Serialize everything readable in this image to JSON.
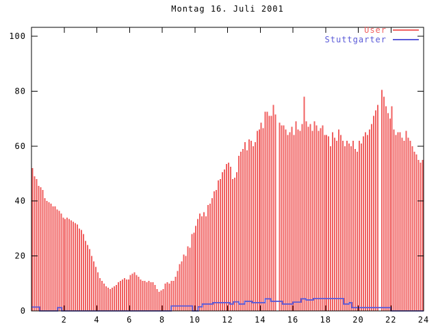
{
  "title": "Montag 16. Juli 2001",
  "colors": {
    "background": "#ffffff",
    "border": "#000000",
    "user": "#f06060",
    "stuttgarter": "#5a5ad8"
  },
  "legend": [
    {
      "label": "User",
      "color": "#f06060"
    },
    {
      "label": "Stuttgarter",
      "color": "#5a5ad8"
    }
  ],
  "chart_data": {
    "type": "bar",
    "title": "Montag 16. Juli 2001",
    "xlabel": "",
    "ylabel": "",
    "xlim": [
      0,
      24
    ],
    "ylim": [
      0,
      103
    ],
    "xticks": [
      2,
      4,
      6,
      8,
      10,
      12,
      14,
      16,
      18,
      20,
      22,
      24
    ],
    "yticks": [
      0,
      20,
      40,
      60,
      80,
      100
    ],
    "grid": false,
    "legend_position": "top-right-inside",
    "series": [
      {
        "name": "User",
        "style": "impulses",
        "color": "#f06060",
        "x_start": 0.0625,
        "x_step": 0.125,
        "values": [
          52,
          49,
          48,
          45.5,
          45,
          44,
          41,
          40,
          39.5,
          39,
          38,
          38,
          37,
          36.5,
          35.5,
          34,
          33.5,
          34,
          33.5,
          33,
          32.5,
          32,
          31.5,
          30,
          29.5,
          28,
          25.5,
          24,
          22.5,
          20,
          18,
          16,
          14,
          12,
          11,
          10,
          9,
          8.5,
          8,
          8.5,
          9,
          9.5,
          10.5,
          11,
          11.5,
          12,
          11.5,
          11.5,
          13,
          13.5,
          14,
          13,
          12.5,
          11.5,
          11,
          11,
          10.5,
          11,
          10.5,
          10.5,
          9.5,
          8,
          7,
          7.5,
          8,
          10,
          10.5,
          10,
          11,
          11,
          12.5,
          14.5,
          17,
          18,
          20.5,
          20,
          23.5,
          23,
          28,
          28.5,
          31,
          33.5,
          35.5,
          34.5,
          36,
          34.5,
          38.5,
          39,
          41,
          43.5,
          44,
          47.5,
          48,
          50.5,
          51.5,
          53.5,
          54,
          52.5,
          48,
          48.5,
          50.5,
          56.5,
          58,
          59,
          61.5,
          58.5,
          62.5,
          62,
          60,
          61.5,
          65.5,
          66,
          68.5,
          66.5,
          72.5,
          72.5,
          71,
          71,
          75,
          71.5,
          null,
          68.5,
          67.5,
          67.5,
          66,
          64,
          65,
          67,
          64,
          69,
          66,
          65.5,
          68,
          78,
          69,
          67,
          68,
          65.5,
          69,
          67.5,
          65.5,
          66.5,
          67.5,
          64,
          64,
          63.5,
          60,
          65,
          63,
          62,
          66,
          64,
          62,
          60,
          62,
          61,
          60,
          62,
          59,
          58,
          62,
          61,
          63.5,
          65,
          64,
          66,
          68,
          71,
          73,
          75,
          null,
          80.5,
          78,
          74.5,
          72,
          70,
          74.5,
          66,
          64,
          65,
          65,
          63,
          62,
          65.5,
          63,
          62,
          60,
          58,
          57,
          55,
          54,
          55
        ]
      },
      {
        "name": "Stuttgarter",
        "style": "steps",
        "color": "#5a5ad8",
        "points": [
          [
            0,
            1.4
          ],
          [
            0.5,
            0
          ],
          [
            1.6,
            1.2
          ],
          [
            1.85,
            0
          ],
          [
            8.55,
            1.8
          ],
          [
            9.85,
            0
          ],
          [
            10.2,
            1.5
          ],
          [
            10.45,
            2.5
          ],
          [
            11.1,
            3
          ],
          [
            12.15,
            2.5
          ],
          [
            12.35,
            3.3
          ],
          [
            12.7,
            2.5
          ],
          [
            13.05,
            3.5
          ],
          [
            13.5,
            3
          ],
          [
            14.3,
            4.4
          ],
          [
            14.65,
            3.5
          ],
          [
            15.35,
            2.5
          ],
          [
            16.0,
            3.2
          ],
          [
            16.5,
            4.4
          ],
          [
            16.8,
            4
          ],
          [
            17.25,
            4.5
          ],
          [
            19.1,
            2.5
          ],
          [
            19.45,
            3
          ],
          [
            19.6,
            1.2
          ],
          [
            22.0,
            0
          ],
          [
            24,
            0
          ]
        ]
      }
    ]
  }
}
